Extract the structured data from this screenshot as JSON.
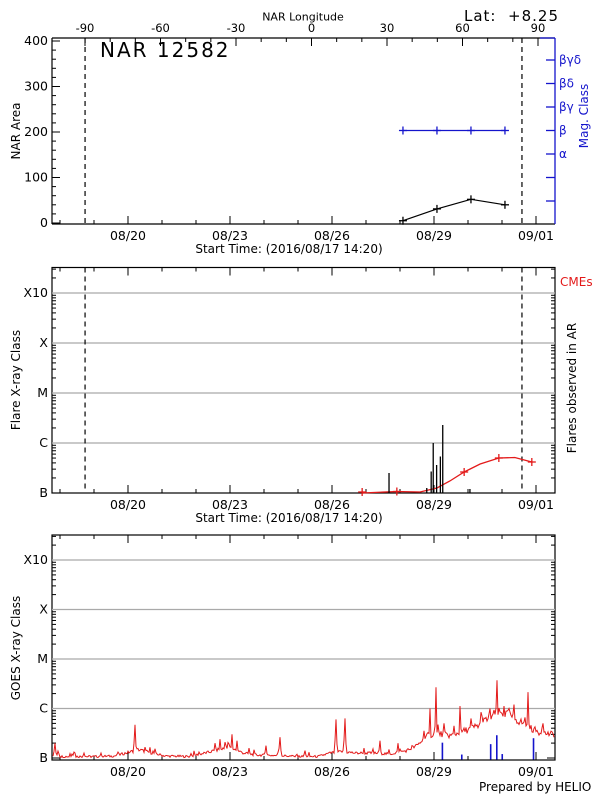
{
  "colors": {
    "frame": "#000000",
    "red": "#e31a1a",
    "blue": "#1414cc",
    "grid_gray": "#a9a9a9",
    "background": "#ffffff"
  },
  "header": {
    "longitude_axis_label": "NAR Longitude",
    "lat_label": "Lat:  +8.25"
  },
  "footer": {
    "credit": "Prepared by HELIO"
  },
  "time_axis": {
    "start_label": "Start Time: (2016/08/17 14:20)",
    "tick_labels": [
      "08/20",
      "08/23",
      "08/26",
      "08/29",
      "09/01"
    ],
    "tick_days": [
      2.4028,
      5.4028,
      8.4028,
      11.4028,
      14.4028
    ],
    "minor_day_start": 0.4028,
    "minor_day_count": 15
  },
  "chart_data": [
    {
      "type": "line",
      "title": "NAR 12582",
      "ylabel": "NAR Area",
      "xlabel": "Start Time: (2016/08/17 14:20)",
      "ylim": [
        0,
        400
      ],
      "yticks": [
        0,
        100,
        200,
        300,
        400
      ],
      "longitude_ticks": [
        -90,
        -60,
        -30,
        0,
        30,
        60,
        90
      ],
      "longitude_minor_step": 10,
      "limb_crossing_days": [
        1.14,
        13.99
      ],
      "right_axis": {
        "label": "Mag. Class",
        "class_labels": [
          "βγδ",
          "βδ",
          "βγ",
          "β",
          "α"
        ],
        "unlabeled_ticks": 2
      },
      "series": [
        {
          "name": "NAR Area",
          "color": "black",
          "marker": "+",
          "dates": [
            "08/28",
            "08/29",
            "08/30",
            "08/31"
          ],
          "days": [
            10.49,
            11.49,
            12.49,
            13.49
          ],
          "values": [
            5,
            31,
            52,
            40
          ]
        },
        {
          "name": "Magnetic Class",
          "color": "blue",
          "marker": "+",
          "dates": [
            "08/28",
            "08/29",
            "08/30",
            "08/31"
          ],
          "days": [
            10.49,
            11.49,
            12.49,
            13.49
          ],
          "values": [
            "β",
            "β",
            "β",
            "β"
          ]
        }
      ]
    },
    {
      "type": "line",
      "ylabel": "Flare X-ray Class",
      "xlabel": "Start Time: (2016/08/17 14:20)",
      "yticks": [
        "B",
        "C",
        "M",
        "X",
        "X10"
      ],
      "right_label_cmes": "CMEs",
      "right_label_flares": "Flares observed in AR",
      "limb_crossing_days": [
        1.14,
        13.99
      ],
      "flares": [
        {
          "day": 10.08,
          "class": "B2.5",
          "dec": 0.4
        },
        {
          "day": 11.19,
          "class": "B1.3",
          "dec": 0.1
        },
        {
          "day": 11.32,
          "class": "B2.7",
          "dec": 0.43
        },
        {
          "day": 11.38,
          "class": "C1.0",
          "dec": 1.0
        },
        {
          "day": 11.48,
          "class": "B3.6",
          "dec": 0.56
        },
        {
          "day": 11.59,
          "class": "B5.4",
          "dec": 0.73
        },
        {
          "day": 11.66,
          "class": "C2.3",
          "dec": 1.36
        },
        {
          "day": 12.46,
          "class": "B1.2",
          "dec": 0.08
        }
      ],
      "cme_curve": {
        "points": [
          {
            "day": 9.29,
            "dec": 0.0
          },
          {
            "day": 10.31,
            "dec": 0.03
          },
          {
            "day": 10.99,
            "dec": 0.02
          },
          {
            "day": 11.49,
            "dec": 0.1
          },
          {
            "day": 11.87,
            "dec": 0.24
          },
          {
            "day": 12.29,
            "dec": 0.42
          },
          {
            "day": 12.76,
            "dec": 0.58
          },
          {
            "day": 13.31,
            "dec": 0.7
          },
          {
            "day": 13.78,
            "dec": 0.71
          },
          {
            "day": 14.28,
            "dec": 0.62
          }
        ],
        "marker_days": [
          9.29,
          10.31,
          12.29,
          13.31,
          14.28
        ]
      }
    },
    {
      "type": "line",
      "ylabel": "GOES X-ray Class",
      "yticks": [
        "B",
        "C",
        "M",
        "X",
        "X10"
      ],
      "goes_envelope": [
        {
          "day": 0.0,
          "dec": 0.04
        },
        {
          "day": 0.5,
          "dec": 0.03
        },
        {
          "day": 1.0,
          "dec": 0.03
        },
        {
          "day": 1.5,
          "dec": 0.03
        },
        {
          "day": 2.0,
          "dec": 0.04
        },
        {
          "day": 2.45,
          "dec": 0.12
        },
        {
          "day": 2.7,
          "dec": 0.17
        },
        {
          "day": 3.0,
          "dec": 0.12
        },
        {
          "day": 3.5,
          "dec": 0.04
        },
        {
          "day": 4.2,
          "dec": 0.03
        },
        {
          "day": 4.8,
          "dec": 0.12
        },
        {
          "day": 5.1,
          "dec": 0.18
        },
        {
          "day": 5.45,
          "dec": 0.2
        },
        {
          "day": 5.8,
          "dec": 0.1
        },
        {
          "day": 6.2,
          "dec": 0.06
        },
        {
          "day": 6.8,
          "dec": 0.05
        },
        {
          "day": 7.4,
          "dec": 0.03
        },
        {
          "day": 8.0,
          "dec": 0.03
        },
        {
          "day": 8.35,
          "dec": 0.1
        },
        {
          "day": 8.7,
          "dec": 0.13
        },
        {
          "day": 9.1,
          "dec": 0.1
        },
        {
          "day": 9.6,
          "dec": 0.1
        },
        {
          "day": 10.1,
          "dec": 0.08
        },
        {
          "day": 10.6,
          "dec": 0.15
        },
        {
          "day": 10.9,
          "dec": 0.25
        },
        {
          "day": 11.2,
          "dec": 0.45
        },
        {
          "day": 11.5,
          "dec": 0.5
        },
        {
          "day": 11.9,
          "dec": 0.45
        },
        {
          "day": 12.3,
          "dec": 0.55
        },
        {
          "day": 12.7,
          "dec": 0.65
        },
        {
          "day": 13.0,
          "dec": 0.8
        },
        {
          "day": 13.25,
          "dec": 0.92
        },
        {
          "day": 13.55,
          "dec": 0.88
        },
        {
          "day": 13.9,
          "dec": 0.75
        },
        {
          "day": 14.2,
          "dec": 0.62
        },
        {
          "day": 14.5,
          "dec": 0.52
        },
        {
          "day": 14.82,
          "dec": 0.48
        }
      ],
      "goes_spikes": [
        {
          "day": 0.26,
          "dec": 0.3
        },
        {
          "day": 0.35,
          "dec": 0.14
        },
        {
          "day": 0.8,
          "dec": 0.12
        },
        {
          "day": 1.1,
          "dec": 0.1
        },
        {
          "day": 1.6,
          "dec": 0.1
        },
        {
          "day": 2.1,
          "dec": 0.12
        },
        {
          "day": 2.62,
          "dec": 0.67
        },
        {
          "day": 2.9,
          "dec": 0.22
        },
        {
          "day": 3.15,
          "dec": 0.14
        },
        {
          "day": 4.5,
          "dec": 0.12
        },
        {
          "day": 4.95,
          "dec": 0.3
        },
        {
          "day": 5.1,
          "dec": 0.38
        },
        {
          "day": 5.25,
          "dec": 0.32
        },
        {
          "day": 5.45,
          "dec": 0.48
        },
        {
          "day": 5.6,
          "dec": 0.35
        },
        {
          "day": 5.95,
          "dec": 0.2
        },
        {
          "day": 6.45,
          "dec": 0.25
        },
        {
          "day": 6.87,
          "dec": 0.42
        },
        {
          "day": 7.6,
          "dec": 0.15
        },
        {
          "day": 8.52,
          "dec": 0.78
        },
        {
          "day": 8.78,
          "dec": 0.8
        },
        {
          "day": 9.35,
          "dec": 0.2
        },
        {
          "day": 9.81,
          "dec": 0.35
        },
        {
          "day": 10.35,
          "dec": 0.3
        },
        {
          "day": 10.75,
          "dec": 0.25
        },
        {
          "day": 11.1,
          "dec": 0.55
        },
        {
          "day": 11.29,
          "dec": 1.0
        },
        {
          "day": 11.45,
          "dec": 1.43
        },
        {
          "day": 11.7,
          "dec": 0.7
        },
        {
          "day": 12.0,
          "dec": 0.65
        },
        {
          "day": 12.17,
          "dec": 1.05
        },
        {
          "day": 12.5,
          "dec": 0.8
        },
        {
          "day": 12.8,
          "dec": 0.85
        },
        {
          "day": 13.05,
          "dec": 1.0
        },
        {
          "day": 13.25,
          "dec": 1.57
        },
        {
          "day": 13.45,
          "dec": 1.05
        },
        {
          "day": 13.6,
          "dec": 1.0
        },
        {
          "day": 14.16,
          "dec": 1.33
        },
        {
          "day": 14.6,
          "dec": 0.7
        }
      ],
      "blue_spikes": [
        {
          "day": 11.65,
          "dec": 0.31
        },
        {
          "day": 12.22,
          "dec": 0.07
        },
        {
          "day": 13.07,
          "dec": 0.28
        },
        {
          "day": 13.25,
          "dec": 0.46
        },
        {
          "day": 13.41,
          "dec": 0.08
        },
        {
          "day": 14.33,
          "dec": 0.4
        }
      ]
    }
  ]
}
